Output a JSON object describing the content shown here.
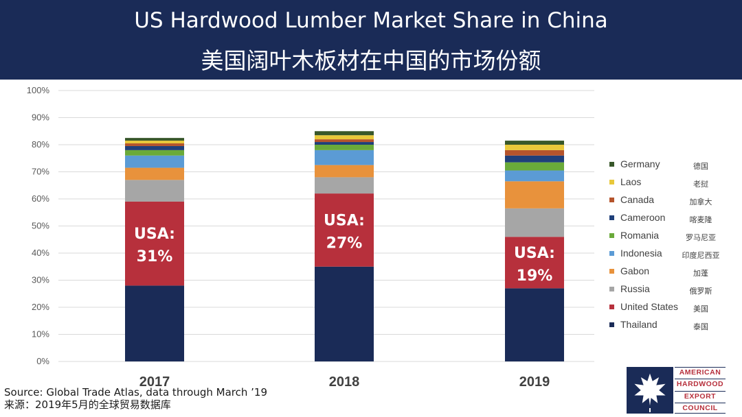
{
  "header": {
    "title_en": "US Hardwood Lumber Market Share in China",
    "title_zh": "美国阔叶木板材在中国的市场份额"
  },
  "chart_data": {
    "type": "bar",
    "stacked": true,
    "title": "US Hardwood Lumber Market Share in China",
    "categories": [
      "2017",
      "2018",
      "2019"
    ],
    "ylim": [
      0,
      100
    ],
    "yticks": [
      "0%",
      "10%",
      "20%",
      "30%",
      "40%",
      "50%",
      "60%",
      "70%",
      "80%",
      "90%",
      "100%"
    ],
    "grid": true,
    "legend_position": "right",
    "series": [
      {
        "name": "Thailand",
        "name_zh": "泰国",
        "color": "#1a2b57",
        "values": [
          28,
          35,
          27
        ]
      },
      {
        "name": "United States",
        "name_zh": "美国",
        "color": "#b7303c",
        "values": [
          31,
          27,
          19
        ]
      },
      {
        "name": "Russia",
        "name_zh": "俄罗斯",
        "color": "#a6a6a6",
        "values": [
          8,
          6,
          10.5
        ]
      },
      {
        "name": "Gabon",
        "name_zh": "加蓬",
        "color": "#e8923c",
        "values": [
          4.5,
          4.5,
          10
        ]
      },
      {
        "name": "Indonesia",
        "name_zh": "印度尼西亚",
        "color": "#5b9bd5",
        "values": [
          4.5,
          5.5,
          4
        ]
      },
      {
        "name": "Romania",
        "name_zh": "罗马尼亚",
        "color": "#6aaa3a",
        "values": [
          2,
          2,
          3
        ]
      },
      {
        "name": "Cameroon",
        "name_zh": "喀麦隆",
        "color": "#1f3f7a",
        "values": [
          1.5,
          1,
          2.5
        ]
      },
      {
        "name": "Canada",
        "name_zh": "加拿大",
        "color": "#b5542c",
        "values": [
          1,
          1,
          2
        ]
      },
      {
        "name": "Laos",
        "name_zh": "老挝",
        "color": "#e8c83a",
        "values": [
          1,
          1.5,
          2
        ]
      },
      {
        "name": "Germany",
        "name_zh": "德国",
        "color": "#38572a",
        "values": [
          1,
          1.5,
          1.5
        ]
      }
    ],
    "annotations": [
      {
        "category": "2017",
        "line1": "USA:",
        "line2": "31%"
      },
      {
        "category": "2018",
        "line1": "USA:",
        "line2": "27%"
      },
      {
        "category": "2019",
        "line1": "USA:",
        "line2": "19%"
      }
    ]
  },
  "footer": {
    "source_en": "Source: Global Trade Atlas, data through March ’19",
    "source_zh": "来源：2019年5月的全球贸易数据库"
  },
  "logo": {
    "lines": [
      "AMERICAN",
      "HARDWOOD",
      "EXPORT",
      "COUNCIL"
    ]
  }
}
